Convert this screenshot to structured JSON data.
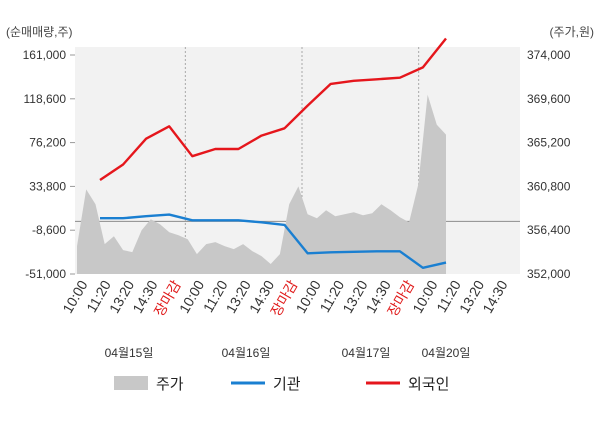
{
  "chart_data": {
    "type": "line",
    "left_axis_label": "(순매매량,주)",
    "right_axis_label": "(주가,원)",
    "left_ticks": [
      "161,000",
      "118,600",
      "76,200",
      "33,800",
      "-8,600",
      "-51,000"
    ],
    "right_ticks": [
      "374,000",
      "369,600",
      "365,200",
      "360,800",
      "356,400",
      "352,000"
    ],
    "left_range": [
      -51000,
      161000
    ],
    "right_range": [
      352000,
      374000
    ],
    "x_tick_labels": [
      "10:00",
      "11:20",
      "13:20",
      "14:30",
      "장마감",
      "10:00",
      "11:20",
      "13:20",
      "14:30",
      "장마감",
      "10:00",
      "11:20",
      "13:20",
      "14:30",
      "장마감",
      "10:00",
      "11:20",
      "13:20",
      "14:30"
    ],
    "date_labels": [
      "04월15일",
      "04월16일",
      "04월17일",
      "04월20일"
    ],
    "colors": {
      "price": "#c8c8c8",
      "institution": "#1a7fd1",
      "foreign": "#e5161c",
      "close_label": "#e01b1b",
      "tick": "#333333"
    },
    "series": [
      {
        "name": "기관",
        "axis": "left",
        "values": [
          3000,
          3000,
          5000,
          6500,
          1000,
          1000,
          1000,
          -1000,
          -3500,
          -31000,
          -30000,
          -29500,
          -29000,
          -29000,
          -45000,
          -40000
        ]
      },
      {
        "name": "외국인",
        "axis": "left",
        "values": [
          40000,
          55000,
          80000,
          92000,
          63000,
          70000,
          70000,
          83000,
          90000,
          112000,
          133000,
          136000,
          137500,
          139000,
          149000,
          177000
        ]
      },
      {
        "name": "주가",
        "axis": "right",
        "type": "area",
        "values": [
          354800,
          360500,
          359000,
          355000,
          355800,
          354400,
          354200,
          356400,
          357500,
          357000,
          356200,
          355900,
          355500,
          354000,
          355000,
          355200,
          354800,
          354500,
          355000,
          354300,
          353800,
          353000,
          354000,
          359000,
          360800,
          358000,
          357600,
          358400,
          357800,
          358000,
          358200,
          357900,
          358100,
          359000,
          358400,
          357700,
          357200,
          361000,
          370000,
          367000,
          366000
        ]
      }
    ]
  }
}
